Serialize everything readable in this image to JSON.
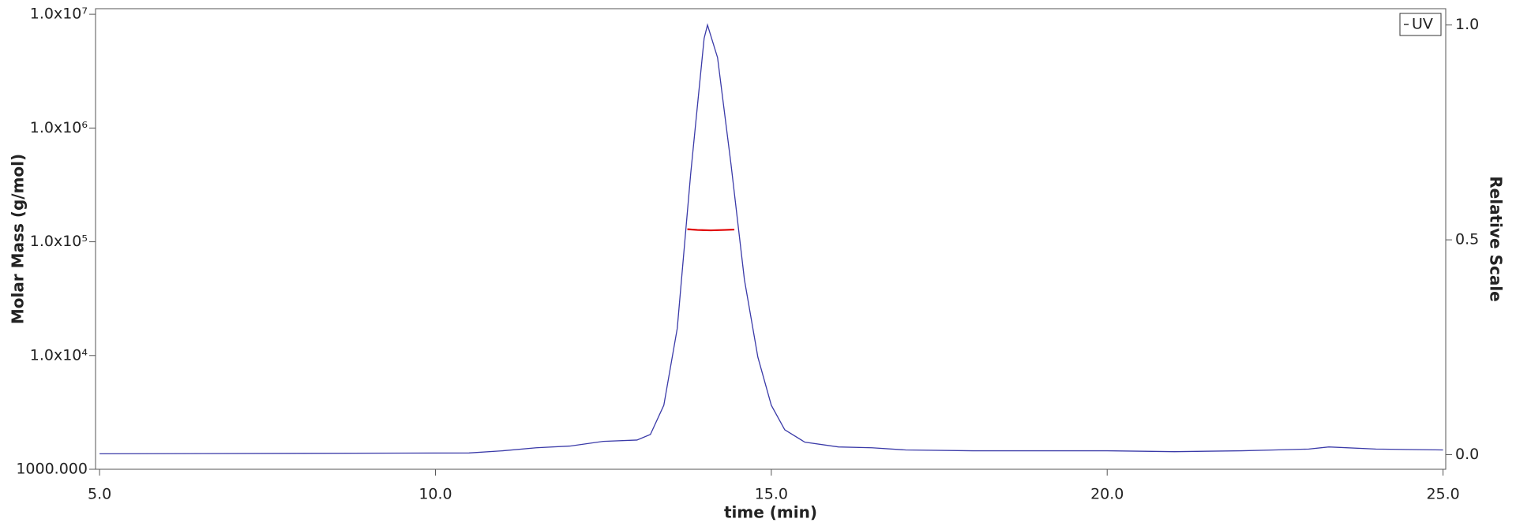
{
  "chart_data": {
    "type": "line",
    "x_label": "time (min)",
    "y_label": "Molar Mass (g/mol)",
    "y2_label": "Relative Scale",
    "xlim": [
      4.94,
      25.04
    ],
    "xticks": [
      {
        "value": 5,
        "label": "5.0"
      },
      {
        "value": 10,
        "label": "10.0"
      },
      {
        "value": 15,
        "label": "15.0"
      },
      {
        "value": 20,
        "label": "20.0"
      },
      {
        "value": 25,
        "label": "25.0"
      }
    ],
    "ylim": [
      1000,
      11200000
    ],
    "yscale": "log",
    "yticks": [
      {
        "value": 1000,
        "label": "1000.000"
      },
      {
        "value": 10000,
        "label": "1.0x10⁴"
      },
      {
        "value": 100000,
        "label": "1.0x10⁵"
      },
      {
        "value": 1000000,
        "label": "1.0x10⁶"
      },
      {
        "value": 10000000,
        "label": "1.0x10⁷"
      }
    ],
    "y2lim": [
      -0.034,
      1.038
    ],
    "y2ticks": [
      {
        "value": 0,
        "label": "0.0"
      },
      0.5,
      {
        "value": 1,
        "label": "1.0"
      }
    ],
    "grid": false,
    "legend": "upper right",
    "series": [
      {
        "name": "UV",
        "color": "#3a3aa8",
        "axis": "y2",
        "in_legend": true,
        "x": [
          5,
          10.5,
          11,
          11.5,
          12,
          12.5,
          13.0,
          13.2,
          13.4,
          13.6,
          13.8,
          14.0,
          14.05,
          14.2,
          14.4,
          14.6,
          14.8,
          15.0,
          15.2,
          15.5,
          16,
          16.5,
          17,
          18,
          19,
          20,
          21,
          22,
          22.5,
          23,
          23.3,
          24,
          25
        ],
        "values": [
          0.002,
          0.004,
          0.009,
          0.016,
          0.02,
          0.031,
          0.034,
          0.047,
          0.115,
          0.294,
          0.654,
          0.969,
          1.0,
          0.924,
          0.676,
          0.407,
          0.227,
          0.115,
          0.058,
          0.029,
          0.018,
          0.016,
          0.011,
          0.009,
          0.009,
          0.009,
          0.007,
          0.009,
          0.011,
          0.013,
          0.018,
          0.013,
          0.011
        ]
      },
      {
        "color": "#e00000",
        "axis": "y",
        "in_legend": false,
        "x": [
          13.75,
          13.9,
          14.1,
          14.3,
          14.45
        ],
        "values": [
          129000,
          127000,
          126000,
          127000,
          128000
        ]
      }
    ]
  }
}
